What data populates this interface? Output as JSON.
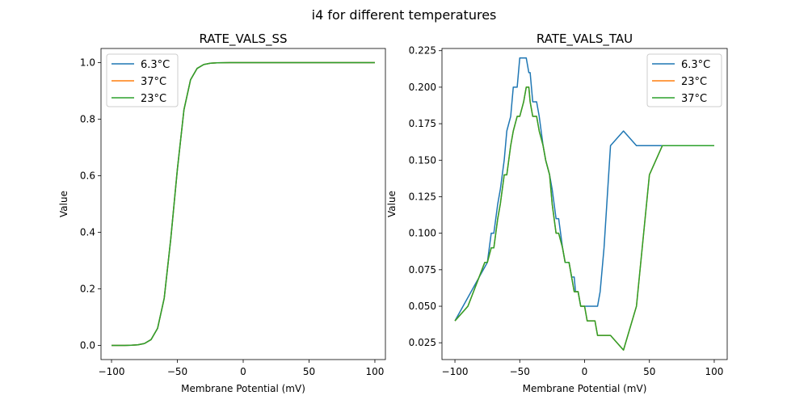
{
  "figure_title": "i4 for different temperatures",
  "colors": {
    "blue": "#1f77b4",
    "orange": "#ff7f0e",
    "green": "#2ca02c"
  },
  "chart_data": [
    {
      "type": "line",
      "title": "RATE_VALS_SS",
      "xlabel": "Membrane Potential (mV)",
      "ylabel": "Value",
      "xlim": [
        -108,
        108
      ],
      "ylim": [
        -0.05,
        1.05
      ],
      "xticks": [
        -100,
        -50,
        0,
        50,
        100
      ],
      "xtick_labels": [
        "−100",
        "−50",
        "0",
        "50",
        "100"
      ],
      "yticks": [
        0.0,
        0.2,
        0.4,
        0.6,
        0.8,
        1.0
      ],
      "ytick_labels": [
        "0.0",
        "0.2",
        "0.4",
        "0.6",
        "0.8",
        "1.0"
      ],
      "legend_position": "upper-left",
      "x": [
        -100,
        -95,
        -90,
        -85,
        -80,
        -75,
        -70,
        -65,
        -60,
        -55,
        -50,
        -45,
        -40,
        -35,
        -30,
        -25,
        -20,
        -15,
        -10,
        -5,
        0,
        5,
        10,
        15,
        20,
        25,
        30,
        35,
        40,
        45,
        50,
        55,
        60,
        65,
        70,
        75,
        80,
        85,
        90,
        95,
        100
      ],
      "series": [
        {
          "name": "6.3°C",
          "color": "#1f77b4",
          "values": [
            0.0,
            0.0,
            0.0,
            0.0007,
            0.0021,
            0.0067,
            0.0205,
            0.0608,
            0.1667,
            0.3775,
            0.6225,
            0.8333,
            0.9392,
            0.9795,
            0.9933,
            0.9979,
            0.9993,
            0.9998,
            1.0,
            1.0,
            1.0,
            1.0,
            1.0,
            1.0,
            1.0,
            1.0,
            1.0,
            1.0,
            1.0,
            1.0,
            1.0,
            1.0,
            1.0,
            1.0,
            1.0,
            1.0,
            1.0,
            1.0,
            1.0,
            1.0,
            1.0
          ]
        },
        {
          "name": "37°C",
          "color": "#ff7f0e",
          "values": [
            0.0,
            0.0,
            0.0,
            0.0007,
            0.0021,
            0.0067,
            0.0205,
            0.0608,
            0.1667,
            0.3775,
            0.6225,
            0.8333,
            0.9392,
            0.9795,
            0.9933,
            0.9979,
            0.9993,
            0.9998,
            1.0,
            1.0,
            1.0,
            1.0,
            1.0,
            1.0,
            1.0,
            1.0,
            1.0,
            1.0,
            1.0,
            1.0,
            1.0,
            1.0,
            1.0,
            1.0,
            1.0,
            1.0,
            1.0,
            1.0,
            1.0,
            1.0,
            1.0
          ]
        },
        {
          "name": "23°C",
          "color": "#2ca02c",
          "values": [
            0.0,
            0.0,
            0.0,
            0.0007,
            0.0021,
            0.0067,
            0.0205,
            0.0608,
            0.1667,
            0.3775,
            0.6225,
            0.8333,
            0.9392,
            0.9795,
            0.9933,
            0.9979,
            0.9993,
            0.9998,
            1.0,
            1.0,
            1.0,
            1.0,
            1.0,
            1.0,
            1.0,
            1.0,
            1.0,
            1.0,
            1.0,
            1.0,
            1.0,
            1.0,
            1.0,
            1.0,
            1.0,
            1.0,
            1.0,
            1.0,
            1.0,
            1.0,
            1.0
          ]
        }
      ]
    },
    {
      "type": "line",
      "title": "RATE_VALS_TAU",
      "xlabel": "Membrane Potential (mV)",
      "ylabel": "Value",
      "xlim": [
        -110,
        110
      ],
      "ylim": [
        0.0135,
        0.2265
      ],
      "xticks": [
        -100,
        -50,
        0,
        50,
        100
      ],
      "xtick_labels": [
        "−100",
        "−50",
        "0",
        "50",
        "100"
      ],
      "yticks": [
        0.025,
        0.05,
        0.075,
        0.1,
        0.125,
        0.15,
        0.175,
        0.2,
        0.225
      ],
      "ytick_labels": [
        "0.025",
        "0.050",
        "0.075",
        "0.100",
        "0.125",
        "0.150",
        "0.175",
        "0.200",
        "0.225"
      ],
      "legend_position": "upper-right",
      "series": [
        {
          "name": "6.3°C",
          "color": "#1f77b4",
          "x": [
            -100,
            -75,
            -72,
            -70,
            -67,
            -65,
            -62,
            -60,
            -57,
            -55,
            -52,
            -50,
            -47,
            -45,
            -43,
            -42,
            -40,
            -37,
            -35,
            -32,
            -30,
            -27,
            -25,
            -22,
            -20,
            -17,
            -15,
            -12,
            -10,
            -8,
            -7,
            -5,
            -3,
            -2,
            0,
            2,
            5,
            8,
            10,
            12,
            15,
            20,
            30,
            40,
            60,
            100
          ],
          "values": [
            0.04,
            0.08,
            0.1,
            0.1,
            0.12,
            0.13,
            0.15,
            0.17,
            0.18,
            0.2,
            0.2,
            0.22,
            0.22,
            0.22,
            0.21,
            0.21,
            0.19,
            0.19,
            0.18,
            0.16,
            0.15,
            0.14,
            0.13,
            0.11,
            0.11,
            0.09,
            0.08,
            0.08,
            0.07,
            0.07,
            0.06,
            0.06,
            0.05,
            0.05,
            0.05,
            0.05,
            0.05,
            0.05,
            0.05,
            0.06,
            0.09,
            0.16,
            0.17,
            0.16,
            0.16,
            0.16
          ]
        },
        {
          "name": "23°C",
          "color": "#ff7f0e",
          "x": [
            -100,
            -90,
            -77,
            -75,
            -72,
            -70,
            -67,
            -65,
            -62,
            -60,
            -57,
            -55,
            -52,
            -50,
            -47,
            -45,
            -43,
            -42,
            -40,
            -37,
            -35,
            -32,
            -30,
            -27,
            -25,
            -22,
            -20,
            -17,
            -15,
            -12,
            -10,
            -8,
            -7,
            -5,
            -3,
            0,
            2,
            5,
            8,
            10,
            20,
            30,
            40,
            50,
            60,
            100
          ],
          "values": [
            0.04,
            0.05,
            0.08,
            0.08,
            0.09,
            0.09,
            0.11,
            0.12,
            0.14,
            0.14,
            0.16,
            0.17,
            0.18,
            0.18,
            0.19,
            0.2,
            0.2,
            0.19,
            0.18,
            0.18,
            0.17,
            0.16,
            0.15,
            0.14,
            0.12,
            0.1,
            0.1,
            0.09,
            0.08,
            0.08,
            0.07,
            0.06,
            0.06,
            0.06,
            0.05,
            0.05,
            0.04,
            0.04,
            0.04,
            0.03,
            0.03,
            0.02,
            0.05,
            0.14,
            0.16,
            0.16
          ]
        },
        {
          "name": "37°C",
          "color": "#2ca02c",
          "x": [
            -100,
            -90,
            -77,
            -75,
            -72,
            -70,
            -67,
            -65,
            -62,
            -60,
            -57,
            -55,
            -52,
            -50,
            -47,
            -45,
            -43,
            -42,
            -40,
            -37,
            -35,
            -32,
            -30,
            -27,
            -25,
            -22,
            -20,
            -17,
            -15,
            -12,
            -10,
            -8,
            -7,
            -5,
            -3,
            0,
            2,
            5,
            8,
            10,
            20,
            30,
            40,
            50,
            60,
            100
          ],
          "values": [
            0.04,
            0.05,
            0.08,
            0.08,
            0.09,
            0.09,
            0.11,
            0.12,
            0.14,
            0.14,
            0.16,
            0.17,
            0.18,
            0.18,
            0.19,
            0.2,
            0.2,
            0.19,
            0.18,
            0.18,
            0.17,
            0.16,
            0.15,
            0.14,
            0.12,
            0.1,
            0.1,
            0.09,
            0.08,
            0.08,
            0.07,
            0.06,
            0.06,
            0.06,
            0.05,
            0.05,
            0.04,
            0.04,
            0.04,
            0.03,
            0.03,
            0.02,
            0.05,
            0.14,
            0.16,
            0.16
          ]
        }
      ]
    }
  ]
}
